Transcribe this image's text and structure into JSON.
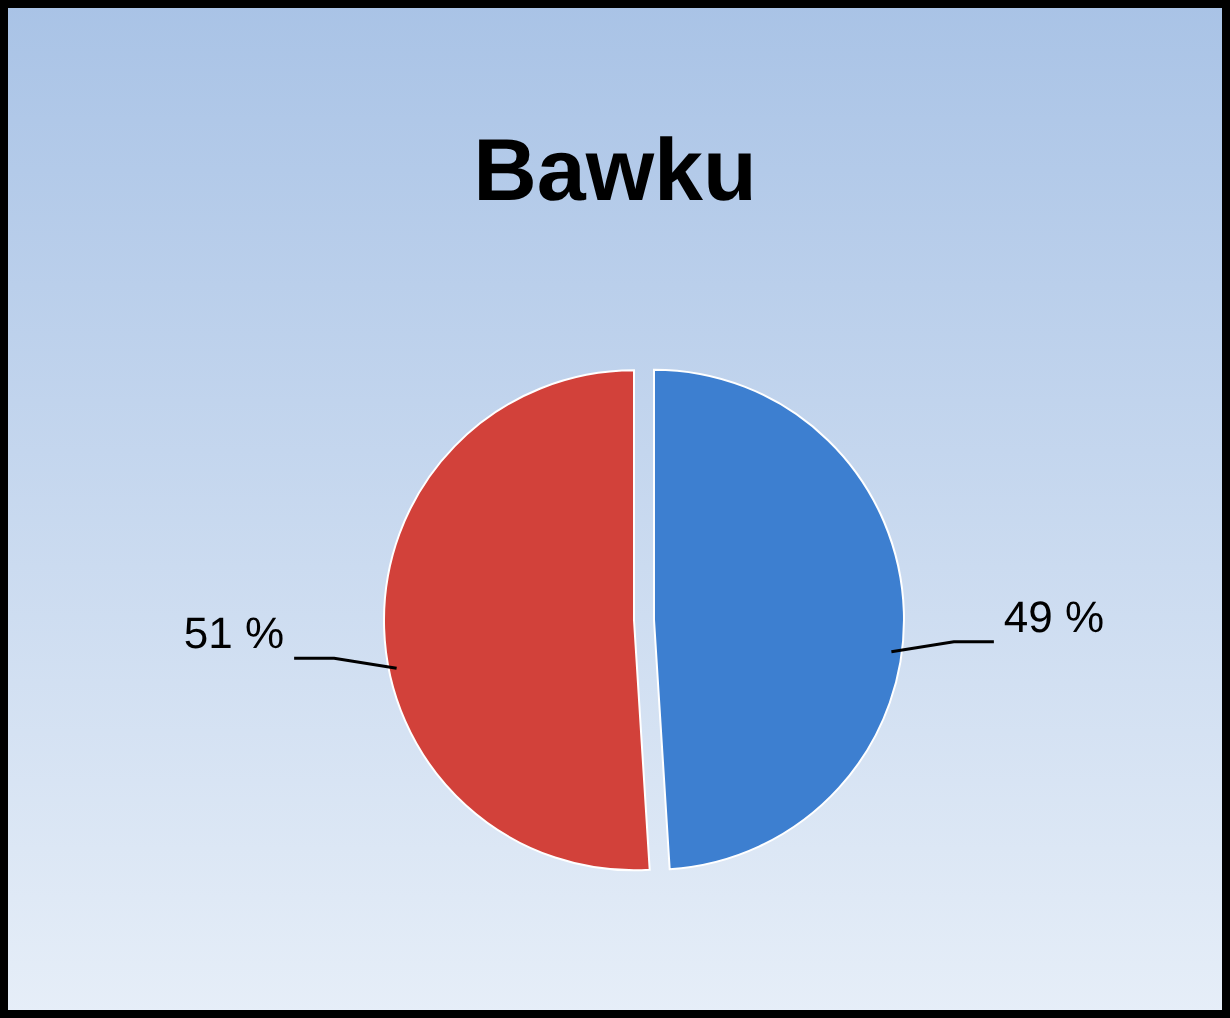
{
  "chart_data": {
    "type": "pie",
    "title": "Bawku",
    "categories": [
      null,
      null
    ],
    "values": [
      49,
      51
    ],
    "colors": [
      "#3d7fd0",
      "#d2413a"
    ],
    "value_labels": [
      "49 %",
      "51 %"
    ]
  }
}
